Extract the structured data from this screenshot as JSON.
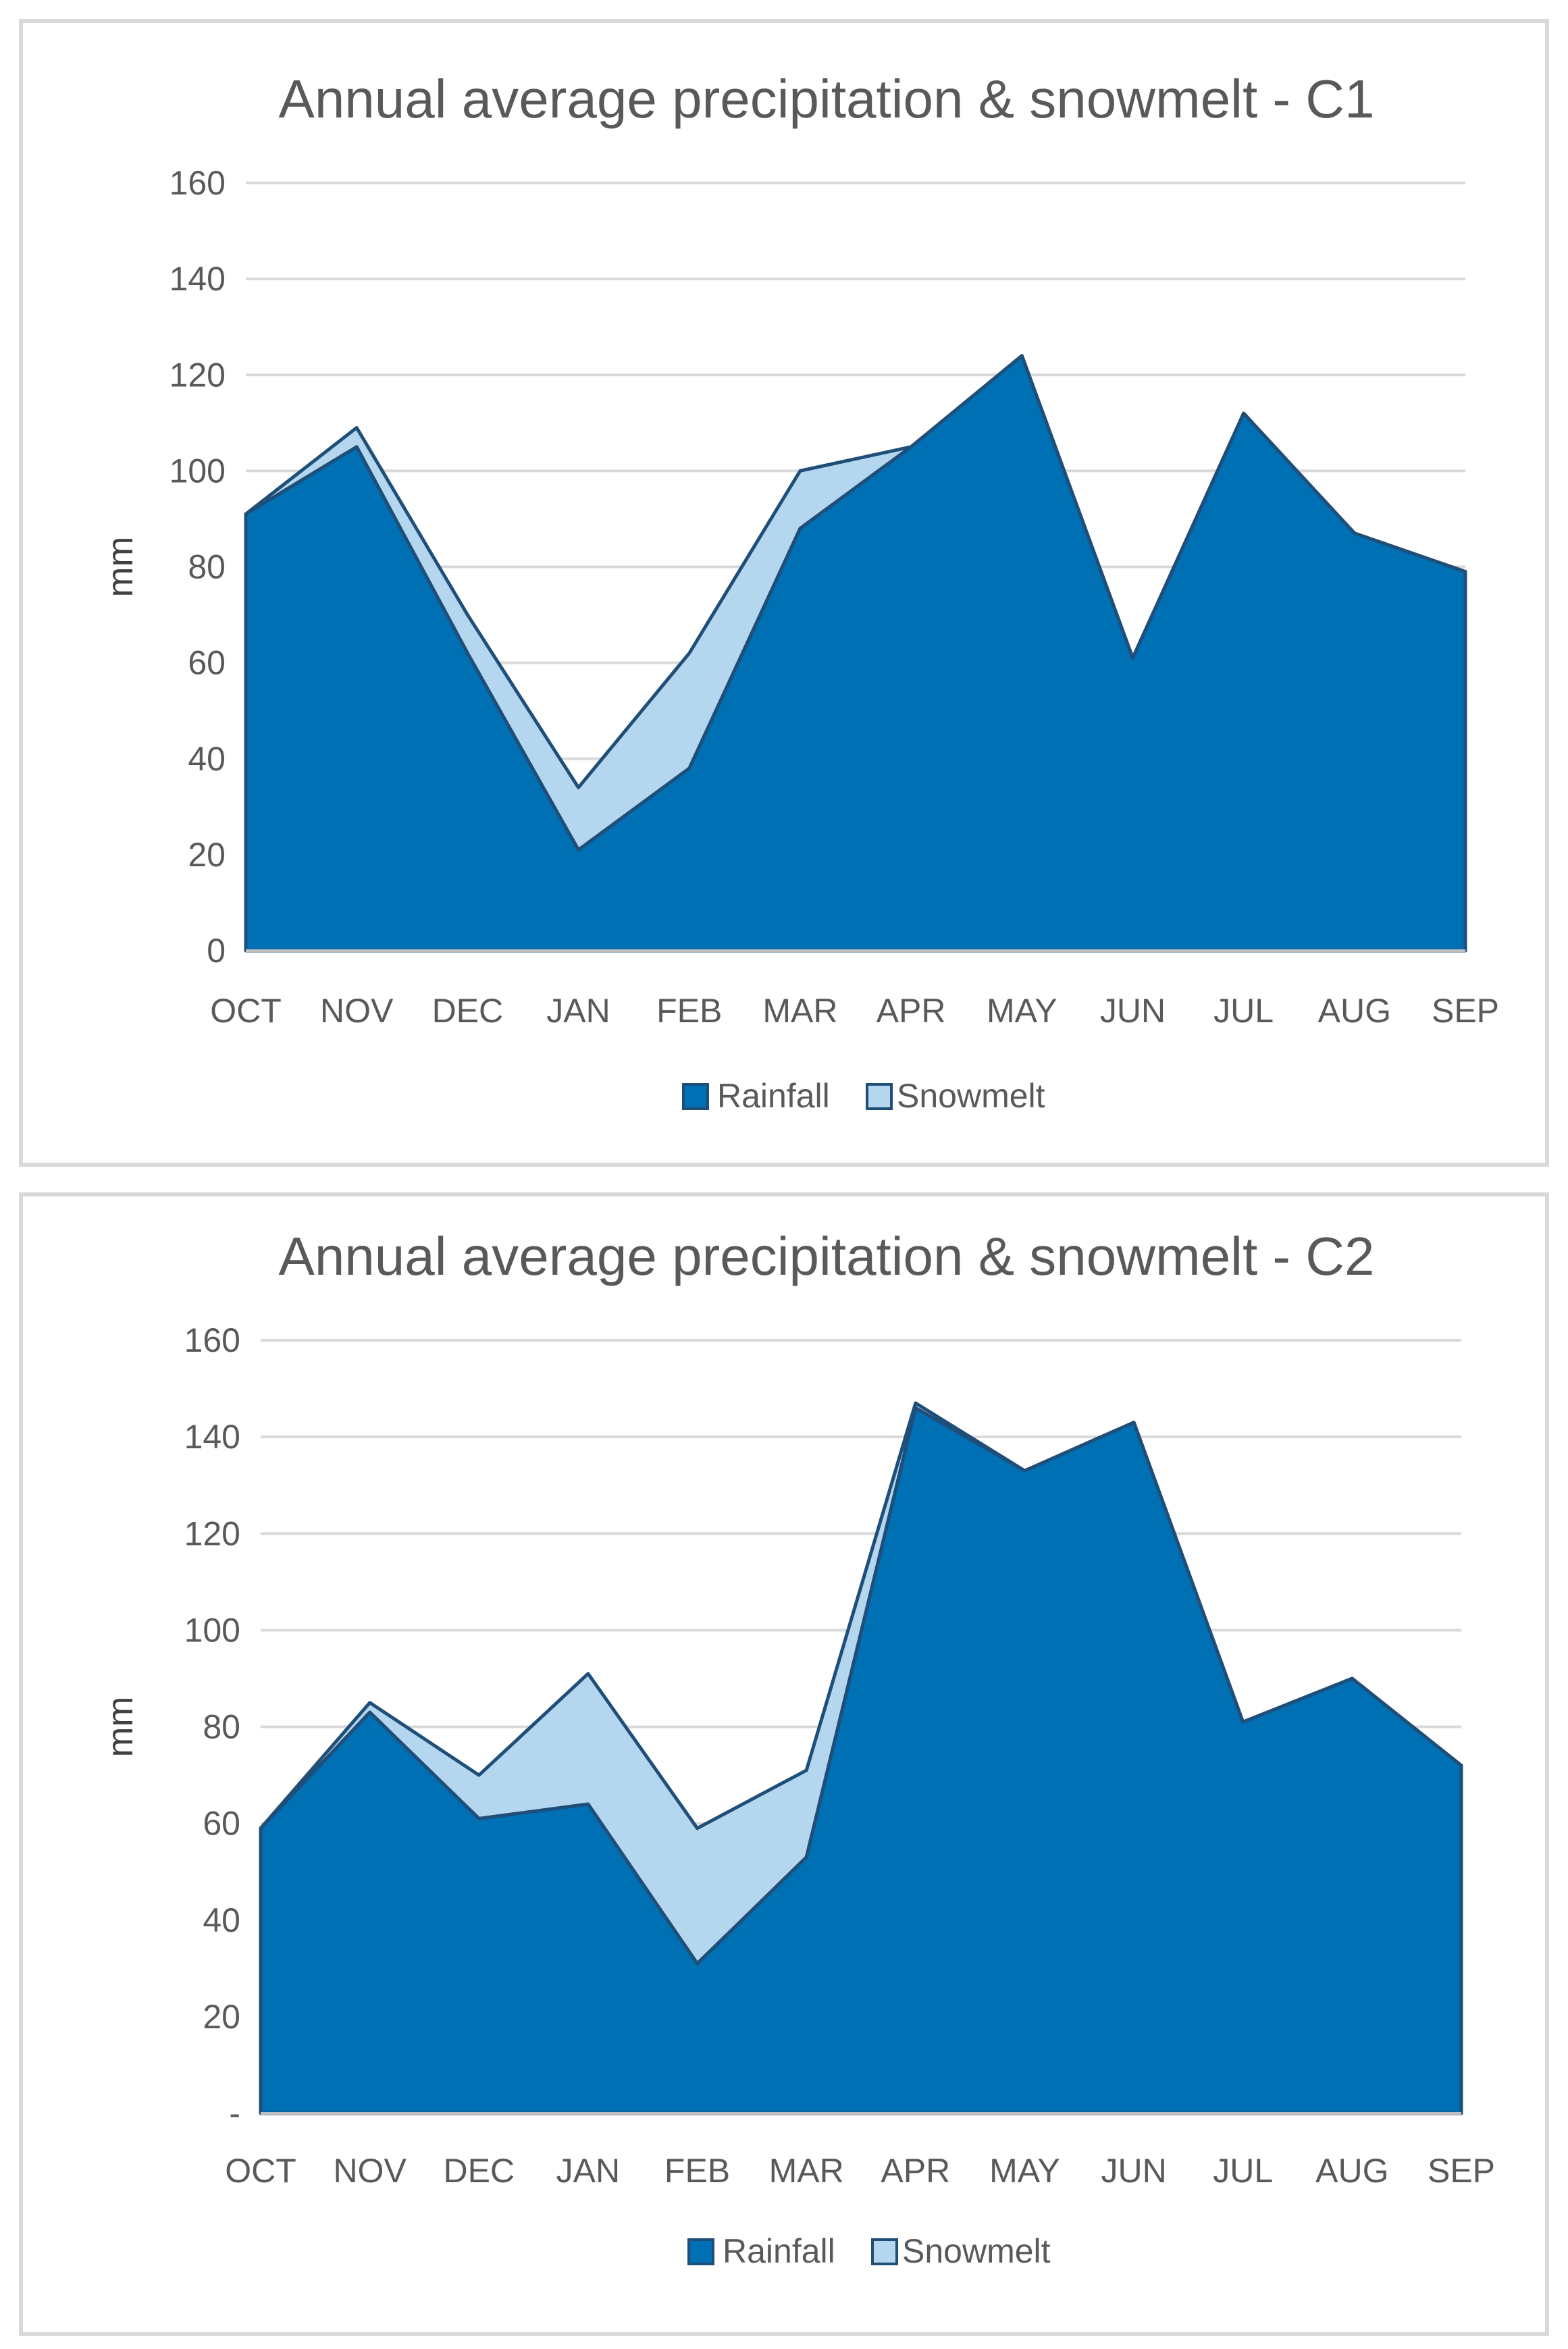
{
  "chart_data": [
    {
      "type": "area",
      "stacked": true,
      "title": "Annual average precipitation & snowmelt - C1",
      "xlabel": "",
      "ylabel": "mm",
      "ylim": [
        0,
        160
      ],
      "y_ticks": [
        "0",
        "20",
        "40",
        "60",
        "80",
        "100",
        "120",
        "140",
        "160"
      ],
      "grid": true,
      "legend_position": "bottom",
      "categories": [
        "OCT",
        "NOV",
        "DEC",
        "JAN",
        "FEB",
        "MAR",
        "APR",
        "MAY",
        "JUN",
        "JUL",
        "AUG",
        "SEP"
      ],
      "series": [
        {
          "name": "Rainfall",
          "color": "#0070b5",
          "values": [
            91,
            105,
            62,
            21,
            38,
            88,
            105,
            124,
            61,
            112,
            87,
            79
          ]
        },
        {
          "name": "Snowmelt",
          "color": "#b4d7ef",
          "values": [
            0,
            4,
            8,
            13,
            24,
            12,
            0,
            0,
            0,
            0,
            0,
            0
          ]
        }
      ]
    },
    {
      "type": "area",
      "stacked": true,
      "title": "Annual average precipitation & snowmelt - C2",
      "xlabel": "",
      "ylabel": "mm",
      "ylim": [
        0,
        160
      ],
      "y_ticks": [
        "-",
        "20",
        "40",
        "60",
        "80",
        "100",
        "120",
        "140",
        "160"
      ],
      "grid": true,
      "legend_position": "bottom",
      "categories": [
        "OCT",
        "NOV",
        "DEC",
        "JAN",
        "FEB",
        "MAR",
        "APR",
        "MAY",
        "JUN",
        "JUL",
        "AUG",
        "SEP"
      ],
      "series": [
        {
          "name": "Rainfall",
          "color": "#0070b5",
          "values": [
            59,
            83,
            61,
            64,
            31,
            53,
            146,
            133,
            143,
            81,
            90,
            72
          ]
        },
        {
          "name": "Snowmelt",
          "color": "#b4d7ef",
          "values": [
            0,
            2,
            9,
            27,
            28,
            18,
            1,
            0,
            0,
            0,
            0,
            0
          ]
        }
      ]
    }
  ],
  "colors": {
    "outline": "#1f4e79",
    "gridline": "#d9d9d9",
    "text": "#595959"
  }
}
